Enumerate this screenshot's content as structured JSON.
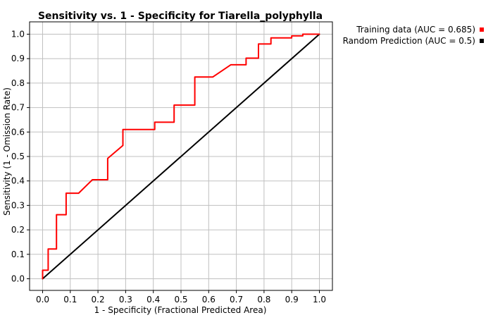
{
  "chart_data": {
    "type": "line",
    "title": "Sensitivity vs. 1 - Specificity for Tiarella_polyphylla",
    "xlabel": "1 - Specificity  (Fractional Predicted Area)",
    "ylabel": "Sensitivity  (1 - Omission Rate)",
    "xlim": [
      0.0,
      1.0
    ],
    "ylim": [
      0.0,
      1.0
    ],
    "xticks": [
      "0.0",
      "0.1",
      "0.2",
      "0.3",
      "0.4",
      "0.5",
      "0.6",
      "0.7",
      "0.8",
      "0.9",
      "1.0"
    ],
    "yticks": [
      "0.0",
      "0.1",
      "0.2",
      "0.3",
      "0.4",
      "0.5",
      "0.6",
      "0.7",
      "0.8",
      "0.9",
      "1.0"
    ],
    "grid": true,
    "legend_position": "top-right",
    "series": [
      {
        "name": "Training data (AUC = 0.685)",
        "color": "#ff0000",
        "x": [
          0.0,
          0.0,
          0.02,
          0.02,
          0.05,
          0.05,
          0.085,
          0.085,
          0.13,
          0.18,
          0.235,
          0.235,
          0.29,
          0.29,
          0.405,
          0.405,
          0.475,
          0.475,
          0.55,
          0.55,
          0.615,
          0.68,
          0.735,
          0.735,
          0.78,
          0.78,
          0.825,
          0.825,
          0.9,
          0.9,
          0.94,
          0.94,
          1.0
        ],
        "y": [
          0.0,
          0.035,
          0.035,
          0.122,
          0.122,
          0.262,
          0.262,
          0.35,
          0.35,
          0.405,
          0.405,
          0.492,
          0.545,
          0.61,
          0.61,
          0.64,
          0.64,
          0.71,
          0.71,
          0.825,
          0.825,
          0.875,
          0.875,
          0.902,
          0.902,
          0.96,
          0.96,
          0.985,
          0.985,
          0.993,
          0.993,
          1.0,
          1.0
        ]
      },
      {
        "name": "Random Prediction (AUC = 0.5)",
        "color": "#000000",
        "x": [
          0.0,
          1.0
        ],
        "y": [
          0.0,
          1.0
        ]
      }
    ]
  }
}
